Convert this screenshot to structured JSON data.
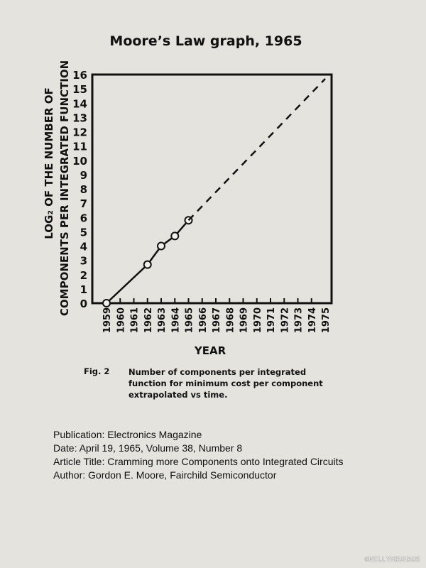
{
  "chart_data": {
    "type": "line",
    "title": "Moore’s Law graph, 1965",
    "xlabel": "YEAR",
    "ylabel_line1": "LOG₂ OF THE NUMBER OF",
    "ylabel_line2": "COMPONENTS PER INTEGRATED FUNCTION",
    "xlim": [
      1959,
      1975
    ],
    "ylim": [
      0,
      16
    ],
    "x_ticks": [
      "1959",
      "1960",
      "1961",
      "1962",
      "1963",
      "1964",
      "1965",
      "1966",
      "1967",
      "1968",
      "1969",
      "1970",
      "1971",
      "1972",
      "1973",
      "1974",
      "1975"
    ],
    "y_ticks": [
      "0",
      "1",
      "2",
      "3",
      "4",
      "5",
      "6",
      "7",
      "8",
      "9",
      "10",
      "11",
      "12",
      "13",
      "14",
      "15",
      "16"
    ],
    "grid": false,
    "series": [
      {
        "style": "solid-with-open-circles",
        "x": [
          1959,
          1962,
          1963,
          1964,
          1965
        ],
        "y": [
          0,
          2.7,
          4.0,
          4.7,
          5.8
        ]
      },
      {
        "style": "dashed-extrapolation",
        "x": [
          1965,
          1975
        ],
        "y": [
          5.8,
          15.7
        ]
      }
    ]
  },
  "caption": {
    "fig_label": "Fig. 2",
    "lines": [
      "Number of components per integrated",
      "function for minimum cost per component",
      "extrapolated vs time."
    ]
  },
  "meta": {
    "publication": "Publication: Electronics Magazine",
    "date": "Date: April 19, 1965, Volume 38, Number 8",
    "article": "Article Title: Cramming more Components onto Integrated Circuits",
    "author": "Author: Gordon E. Moore, Fairchild Semiconductor"
  },
  "credit": "©WILLYNEUHAUS"
}
